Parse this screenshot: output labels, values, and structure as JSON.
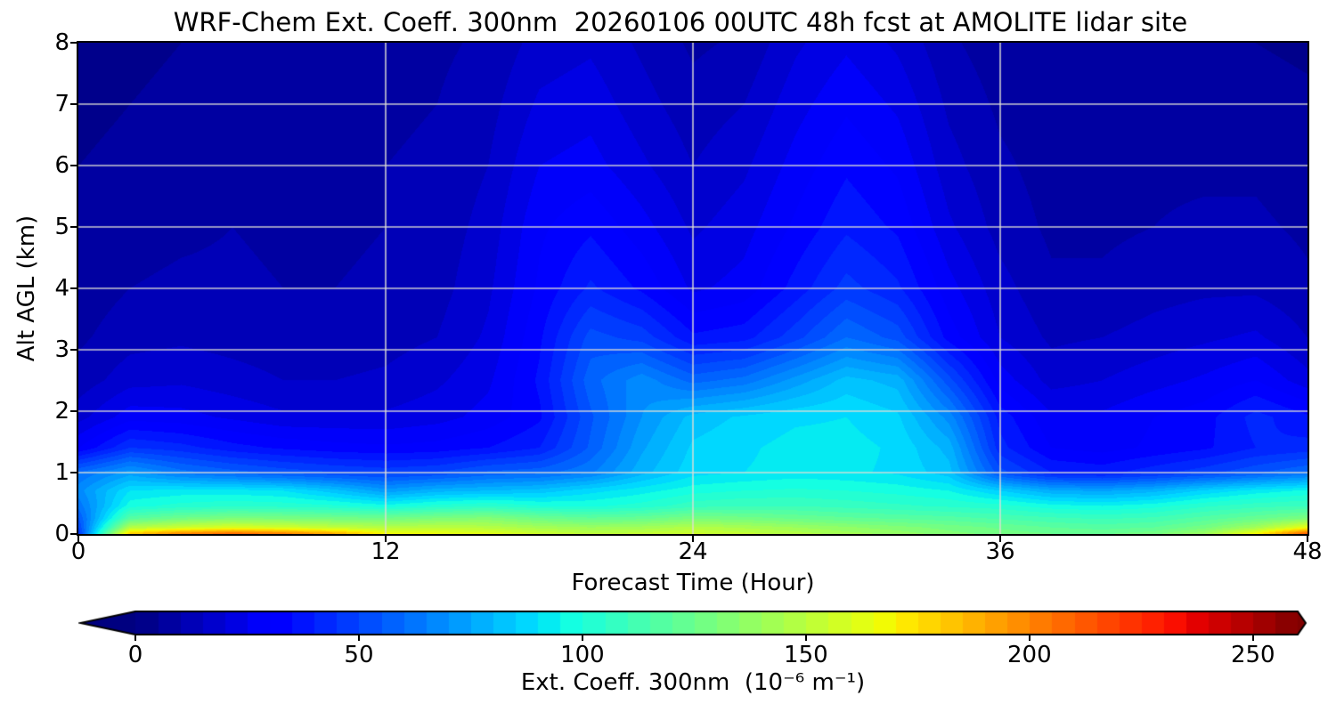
{
  "title": "WRF-Chem Ext. Coeff. 300nm  20260106 00UTC 48h fcst at AMOLITE lidar site",
  "axes": {
    "x": {
      "label": "Forecast Time (Hour)",
      "range": [
        0,
        48
      ],
      "ticks": [
        0,
        12,
        24,
        36,
        48
      ]
    },
    "y": {
      "label": "Alt AGL (km)",
      "range": [
        0,
        8
      ],
      "ticks": [
        0,
        1,
        2,
        3,
        4,
        5,
        6,
        7,
        8
      ]
    }
  },
  "colorbar": {
    "label": "Ext. Coeff. 300nm  (10⁻⁶ m⁻¹)",
    "ticks": [
      0,
      50,
      100,
      150,
      200,
      250
    ],
    "range": [
      0,
      260
    ],
    "extend": "both",
    "under_color": "#000080",
    "over_color": "#800000"
  },
  "style": {
    "background_color": "#000080",
    "gridline_color": "rgba(222,222,214,0.9)",
    "spine_color": "#000000"
  },
  "chart_data": {
    "type": "heatmap",
    "title": "WRF-Chem Ext. Coeff. 300nm  20260106 00UTC 48h fcst at AMOLITE lidar site",
    "xlabel": "Forecast Time (Hour)",
    "ylabel": "Alt AGL (km)",
    "units": "10^-6 m^-1",
    "colormap": "jet",
    "vmin": 0,
    "vmax": 260,
    "level_step": 5,
    "grid": true,
    "xlim": [
      0,
      48
    ],
    "ylim": [
      0,
      8
    ],
    "x_hours": [
      0,
      2,
      4,
      6,
      8,
      10,
      12,
      14,
      16,
      18,
      20,
      22,
      24,
      26,
      28,
      30,
      32,
      34,
      36,
      38,
      40,
      42,
      44,
      46,
      48
    ],
    "y_km": [
      0.0,
      0.1,
      0.25,
      0.45,
      0.7,
      1.0,
      1.4,
      1.9,
      2.5,
      3.2,
      4.0,
      5.0,
      6.0,
      7.0,
      8.0
    ],
    "values": [
      [
        45,
        180,
        200,
        208,
        202,
        190,
        168,
        165,
        162,
        155,
        150,
        152,
        156,
        152,
        148,
        142,
        138,
        132,
        128,
        125,
        124,
        128,
        140,
        168,
        212
      ],
      [
        50,
        148,
        155,
        160,
        157,
        152,
        148,
        150,
        148,
        143,
        140,
        142,
        147,
        144,
        140,
        136,
        132,
        128,
        124,
        120,
        118,
        120,
        128,
        142,
        165
      ],
      [
        55,
        118,
        126,
        130,
        129,
        127,
        126,
        130,
        132,
        125,
        121,
        123,
        129,
        127,
        124,
        121,
        119,
        117,
        114,
        111,
        109,
        111,
        117,
        123,
        130
      ],
      [
        62,
        98,
        102,
        104,
        103,
        101,
        97,
        102,
        105,
        100,
        99,
        102,
        108,
        110,
        110,
        108,
        106,
        104,
        102,
        97,
        95,
        98,
        104,
        108,
        110
      ],
      [
        68,
        90,
        92,
        92,
        90,
        82,
        72,
        78,
        80,
        82,
        88,
        93,
        98,
        100,
        101,
        100,
        98,
        95,
        85,
        76,
        74,
        78,
        86,
        92,
        96
      ],
      [
        60,
        72,
        62,
        57,
        53,
        50,
        48,
        50,
        56,
        58,
        64,
        78,
        88,
        90,
        92,
        91,
        89,
        82,
        52,
        40,
        38,
        43,
        48,
        54,
        60
      ],
      [
        30,
        45,
        42,
        37,
        34,
        32,
        31,
        32,
        35,
        40,
        56,
        74,
        86,
        89,
        92,
        92,
        89,
        78,
        42,
        30,
        28,
        31,
        34,
        40,
        42
      ],
      [
        18,
        28,
        27,
        24,
        21,
        21,
        21,
        23,
        27,
        34,
        54,
        70,
        82,
        86,
        89,
        90,
        86,
        68,
        38,
        26,
        26,
        30,
        33,
        42,
        36
      ],
      [
        12,
        18,
        19,
        17,
        15,
        15,
        16,
        19,
        24,
        36,
        58,
        68,
        58,
        62,
        72,
        82,
        78,
        52,
        28,
        18,
        20,
        23,
        26,
        30,
        22
      ],
      [
        9,
        13,
        14,
        13,
        12,
        12,
        13,
        15,
        21,
        34,
        52,
        48,
        36,
        38,
        48,
        60,
        53,
        33,
        20,
        14,
        15,
        17,
        19,
        21,
        15
      ],
      [
        7,
        10,
        11,
        11,
        10,
        10,
        11,
        13,
        19,
        31,
        41,
        34,
        24,
        27,
        37,
        47,
        41,
        27,
        17,
        11,
        11,
        13,
        14,
        14,
        11
      ],
      [
        6,
        8,
        9,
        10,
        9,
        9,
        10,
        12,
        17,
        29,
        34,
        27,
        19,
        23,
        31,
        39,
        34,
        21,
        13,
        9,
        9,
        10,
        11,
        11,
        9
      ],
      [
        5,
        6,
        8,
        9,
        9,
        9,
        10,
        11,
        15,
        25,
        27,
        21,
        15,
        19,
        27,
        34,
        29,
        17,
        11,
        8,
        8,
        9,
        9,
        9,
        7
      ],
      [
        4,
        5,
        6,
        8,
        8,
        8,
        9,
        10,
        13,
        21,
        23,
        17,
        12,
        15,
        23,
        29,
        24,
        14,
        9,
        7,
        7,
        7,
        7,
        7,
        6
      ],
      [
        3,
        4,
        5,
        6,
        7,
        7,
        8,
        9,
        11,
        17,
        19,
        14,
        9,
        11,
        19,
        24,
        19,
        11,
        7,
        5,
        5,
        5,
        5,
        5,
        4
      ]
    ]
  }
}
